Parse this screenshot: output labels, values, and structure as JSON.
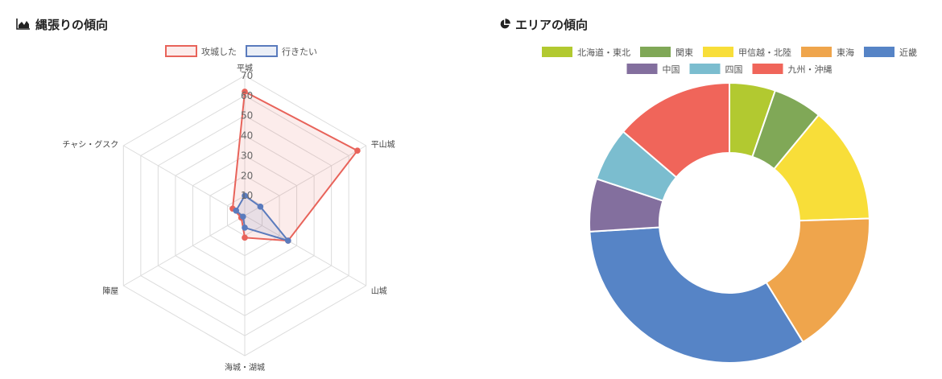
{
  "left_panel": {
    "title": "縄張りの傾向",
    "icon": "area-chart-icon"
  },
  "right_panel": {
    "title": "エリアの傾向",
    "icon": "pie-chart-icon"
  },
  "chart_data": [
    {
      "type": "radar",
      "axes": [
        "平城",
        "平山城",
        "山城",
        "海城・湖城",
        "陣屋",
        "チャシ・グスク"
      ],
      "rlim": [
        0,
        70
      ],
      "ticks": [
        10,
        20,
        30,
        40,
        50,
        60,
        70
      ],
      "legend": "top",
      "series": [
        {
          "name": "攻城した",
          "color": "#e8635a",
          "fill": "rgba(232,99,90,0.12)",
          "values": [
            62,
            65,
            25,
            11,
            2,
            7
          ]
        },
        {
          "name": "行きたい",
          "color": "#5a7bbd",
          "fill": "rgba(90,123,189,0.12)",
          "values": [
            10,
            9,
            25,
            6,
            1,
            5
          ]
        }
      ]
    },
    {
      "type": "pie",
      "legend": "top",
      "categories": [
        "北海道・東北",
        "関東",
        "甲信越・北陸",
        "東海",
        "近畿",
        "中国",
        "四国",
        "九州・沖縄"
      ],
      "values": [
        5.3,
        5.7,
        13.5,
        16.7,
        32.8,
        6.1,
        6.2,
        13.7
      ],
      "colors": [
        "#b2c930",
        "#80a857",
        "#f8de39",
        "#efa54c",
        "#5684c6",
        "#836f9e",
        "#7bbdcf",
        "#f0655a"
      ]
    }
  ]
}
